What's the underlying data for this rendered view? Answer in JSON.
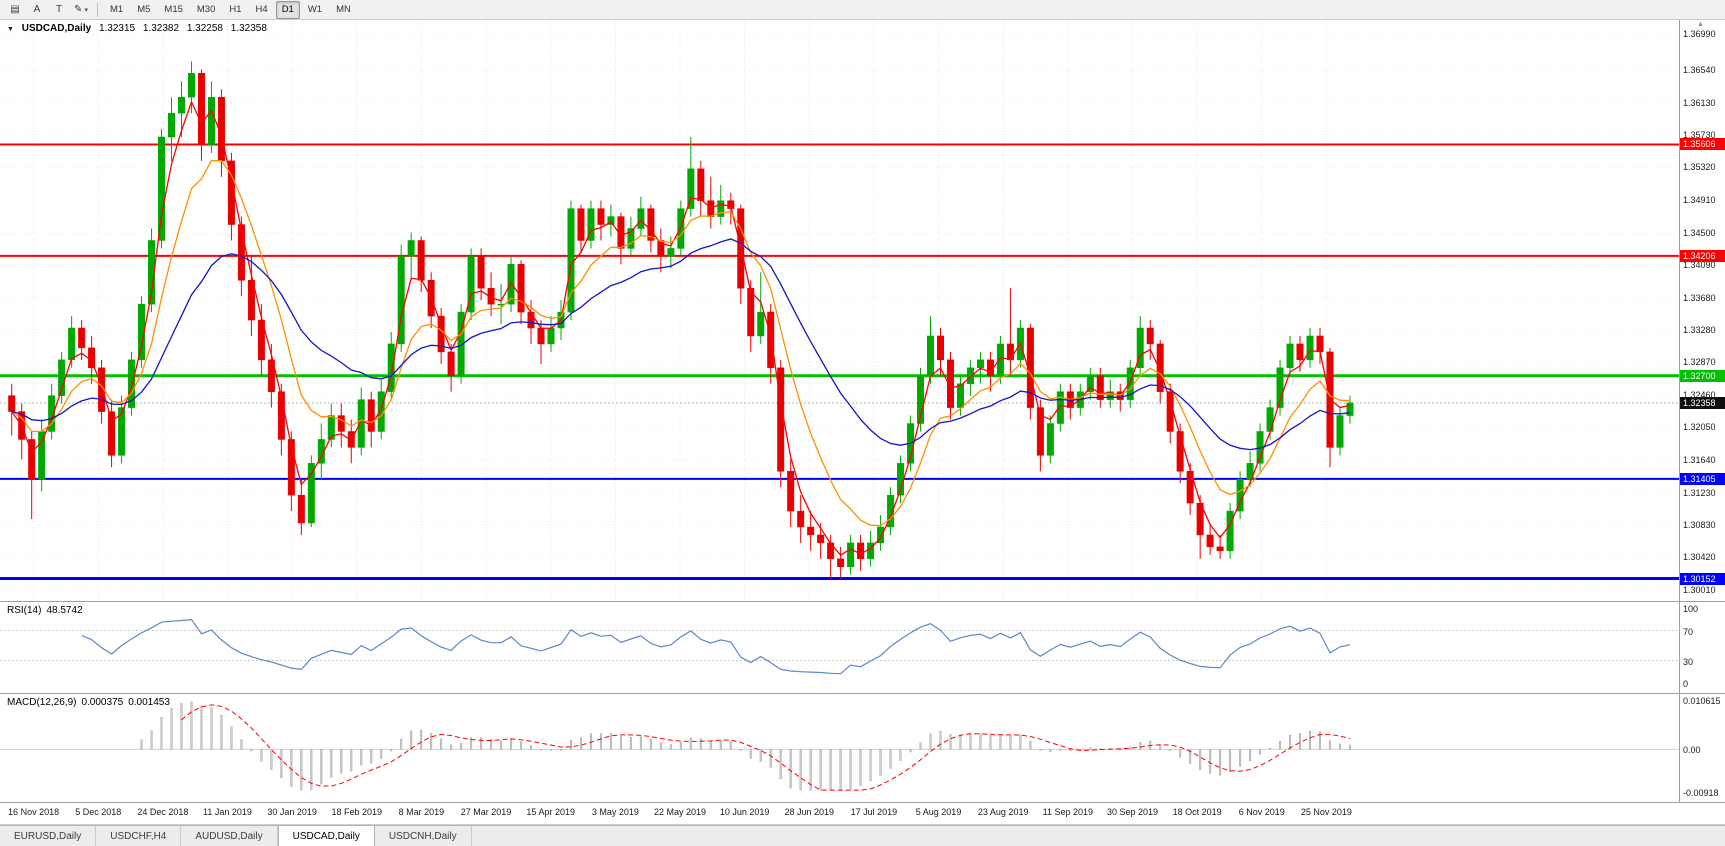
{
  "toolbar": {
    "tools": [
      {
        "name": "chart-symbol",
        "glyph": "▤"
      },
      {
        "name": "cursor-a",
        "glyph": "A"
      },
      {
        "name": "text-frame",
        "glyph": "T"
      },
      {
        "name": "draw-tools",
        "glyph": "✎",
        "caret": "▾"
      }
    ],
    "timeframes": [
      "M1",
      "M5",
      "M15",
      "M30",
      "H1",
      "H4",
      "D1",
      "W1",
      "MN"
    ],
    "active_timeframe": "D1"
  },
  "chart": {
    "title_icon": "▼",
    "symbol_label": "USDCAD,Daily",
    "ohlc": {
      "open": "1.32315",
      "high": "1.32382",
      "low": "1.32258",
      "close": "1.32358"
    },
    "scroll_up_icon": "▲"
  },
  "rsi": {
    "label": "RSI(14)",
    "value": "48.5742",
    "color": "#5a8ac6",
    "axis": [
      {
        "label": "100",
        "value": 100
      },
      {
        "label": "70",
        "value": 70
      },
      {
        "label": "30",
        "value": 30
      },
      {
        "label": "0",
        "value": 0
      }
    ],
    "dashed_levels": [
      70,
      30
    ]
  },
  "macd": {
    "label": "MACD(12,26,9)",
    "value_main": "0.000375",
    "value_signal": "0.001453",
    "histogram_color": "#cdcdcd",
    "histogram_stroke": "#9a9a9a",
    "signal_color": "#ff0000",
    "axis": [
      {
        "label": "0.010615",
        "value": 0.010615
      },
      {
        "label": "0.00",
        "value": 0
      },
      {
        "label": "-0.00918",
        "value": -0.00918
      }
    ]
  },
  "tabs": {
    "items": [
      "EURUSD,Daily",
      "USDCHF,H4",
      "AUDUSD,Daily",
      "USDCAD,Daily",
      "USDCNH,Daily"
    ],
    "active": "USDCAD,Daily"
  },
  "chart_data": {
    "type": "candlestick",
    "symbol": "USDCAD",
    "timeframe": "Daily",
    "y_range": [
      1.2987,
      1.3717
    ],
    "price_ticks": [
      "1.36990",
      "1.36540",
      "1.36130",
      "1.35730",
      "1.35320",
      "1.34910",
      "1.34500",
      "1.34090",
      "1.33680",
      "1.33280",
      "1.32870",
      "1.32460",
      "1.32050",
      "1.31640",
      "1.31230",
      "1.30830",
      "1.30420",
      "1.30010"
    ],
    "dates": [
      "16 Nov 2018",
      "5 Dec 2018",
      "24 Dec 2018",
      "11 Jan 2019",
      "30 Jan 2019",
      "18 Feb 2019",
      "8 Mar 2019",
      "27 Mar 2019",
      "15 Apr 2019",
      "3 May 2019",
      "22 May 2019",
      "10 Jun 2019",
      "28 Jun 2019",
      "17 Jul 2019",
      "5 Aug 2019",
      "23 Aug 2019",
      "11 Sep 2019",
      "30 Sep 2019",
      "18 Oct 2019",
      "6 Nov 2019",
      "25 Nov 2019"
    ],
    "bull_color": "#00a800",
    "bear_color": "#e80000",
    "levels": [
      {
        "label": "1.35606",
        "price": 1.35606,
        "color": "#ff0000",
        "width": 2
      },
      {
        "label": "1.34206",
        "price": 1.34206,
        "color": "#ff0000",
        "width": 2
      },
      {
        "label": "1.32700",
        "price": 1.327,
        "color": "#00c000",
        "width": 3
      },
      {
        "label": "1.31405",
        "price": 1.31405,
        "color": "#0000ff",
        "width": 2
      },
      {
        "label": "1.30152",
        "price": 1.30152,
        "color": "#0000ff",
        "width": 3
      }
    ],
    "current_price": {
      "label": "1.32358",
      "price": 1.32358,
      "line_color": "#b4b4b4",
      "tag_color": "#0d0d0d"
    },
    "moving_averages": [
      {
        "name": "ma-fast",
        "color": "#ff0000",
        "period": 3
      },
      {
        "name": "ma-mid",
        "color": "#ff9000",
        "period": 8
      },
      {
        "name": "ma-slow",
        "color": "#1414c8",
        "period": 22
      }
    ],
    "candles": [
      [
        1.3245,
        1.326,
        1.3195,
        1.3225
      ],
      [
        1.3225,
        1.3235,
        1.3165,
        1.319
      ],
      [
        1.319,
        1.32,
        1.309,
        1.314
      ],
      [
        1.314,
        1.3215,
        1.3125,
        1.32
      ],
      [
        1.32,
        1.326,
        1.319,
        1.3245
      ],
      [
        1.3245,
        1.33,
        1.3235,
        1.329
      ],
      [
        1.329,
        1.3345,
        1.328,
        1.333
      ],
      [
        1.333,
        1.334,
        1.329,
        1.3305
      ],
      [
        1.3305,
        1.332,
        1.326,
        1.328
      ],
      [
        1.328,
        1.329,
        1.321,
        1.3225
      ],
      [
        1.3225,
        1.324,
        1.3155,
        1.317
      ],
      [
        1.317,
        1.3245,
        1.316,
        1.323
      ],
      [
        1.323,
        1.33,
        1.322,
        1.329
      ],
      [
        1.329,
        1.337,
        1.328,
        1.336
      ],
      [
        1.336,
        1.3455,
        1.335,
        1.344
      ],
      [
        1.344,
        1.358,
        1.343,
        1.357
      ],
      [
        1.357,
        1.362,
        1.354,
        1.36
      ],
      [
        1.36,
        1.364,
        1.357,
        1.362
      ],
      [
        1.362,
        1.3665,
        1.36,
        1.365
      ],
      [
        1.365,
        1.3655,
        1.354,
        1.356
      ],
      [
        1.356,
        1.364,
        1.355,
        1.362
      ],
      [
        1.362,
        1.363,
        1.352,
        1.354
      ],
      [
        1.354,
        1.355,
        1.344,
        1.346
      ],
      [
        1.346,
        1.347,
        1.337,
        1.339
      ],
      [
        1.339,
        1.342,
        1.332,
        1.334
      ],
      [
        1.334,
        1.336,
        1.327,
        1.329
      ],
      [
        1.329,
        1.331,
        1.323,
        1.325
      ],
      [
        1.325,
        1.326,
        1.317,
        1.319
      ],
      [
        1.319,
        1.32,
        1.31,
        1.312
      ],
      [
        1.312,
        1.314,
        1.307,
        1.3085
      ],
      [
        1.3085,
        1.317,
        1.308,
        1.316
      ],
      [
        1.316,
        1.321,
        1.314,
        1.319
      ],
      [
        1.319,
        1.3235,
        1.318,
        1.322
      ],
      [
        1.322,
        1.3235,
        1.318,
        1.32
      ],
      [
        1.32,
        1.3215,
        1.316,
        1.318
      ],
      [
        1.318,
        1.3255,
        1.317,
        1.324
      ],
      [
        1.324,
        1.325,
        1.318,
        1.32
      ],
      [
        1.32,
        1.3265,
        1.319,
        1.325
      ],
      [
        1.325,
        1.3325,
        1.324,
        1.331
      ],
      [
        1.331,
        1.3435,
        1.33,
        1.342
      ],
      [
        1.342,
        1.345,
        1.339,
        1.344
      ],
      [
        1.344,
        1.3445,
        1.3375,
        1.339
      ],
      [
        1.339,
        1.34,
        1.333,
        1.3345
      ],
      [
        1.3345,
        1.3355,
        1.3285,
        1.33
      ],
      [
        1.33,
        1.331,
        1.325,
        1.327
      ],
      [
        1.327,
        1.336,
        1.326,
        1.335
      ],
      [
        1.335,
        1.343,
        1.334,
        1.342
      ],
      [
        1.342,
        1.343,
        1.3365,
        1.338
      ],
      [
        1.338,
        1.34,
        1.3345,
        1.336
      ],
      [
        1.336,
        1.3385,
        1.3335,
        1.336
      ],
      [
        1.336,
        1.342,
        1.335,
        1.341
      ],
      [
        1.341,
        1.3415,
        1.3335,
        1.335
      ],
      [
        1.335,
        1.3365,
        1.331,
        1.333
      ],
      [
        1.333,
        1.334,
        1.3285,
        1.331
      ],
      [
        1.331,
        1.3345,
        1.33,
        1.333
      ],
      [
        1.333,
        1.3365,
        1.3315,
        1.335
      ],
      [
        1.335,
        1.349,
        1.334,
        1.348
      ],
      [
        1.348,
        1.3485,
        1.3425,
        1.344
      ],
      [
        1.344,
        1.349,
        1.343,
        1.348
      ],
      [
        1.348,
        1.349,
        1.344,
        1.346
      ],
      [
        1.346,
        1.3485,
        1.3445,
        1.347
      ],
      [
        1.347,
        1.3475,
        1.341,
        1.343
      ],
      [
        1.343,
        1.347,
        1.342,
        1.3455
      ],
      [
        1.3455,
        1.3495,
        1.3445,
        1.348
      ],
      [
        1.348,
        1.3485,
        1.3425,
        1.344
      ],
      [
        1.344,
        1.3455,
        1.34,
        1.342
      ],
      [
        1.342,
        1.3445,
        1.3405,
        1.343
      ],
      [
        1.343,
        1.349,
        1.342,
        1.348
      ],
      [
        1.348,
        1.357,
        1.347,
        1.353
      ],
      [
        1.353,
        1.354,
        1.347,
        1.349
      ],
      [
        1.349,
        1.352,
        1.3455,
        1.347
      ],
      [
        1.347,
        1.351,
        1.346,
        1.349
      ],
      [
        1.349,
        1.35,
        1.346,
        1.348
      ],
      [
        1.348,
        1.3485,
        1.336,
        1.338
      ],
      [
        1.338,
        1.339,
        1.33,
        1.332
      ],
      [
        1.332,
        1.34,
        1.331,
        1.335
      ],
      [
        1.335,
        1.336,
        1.326,
        1.328
      ],
      [
        1.328,
        1.329,
        1.313,
        1.315
      ],
      [
        1.315,
        1.3165,
        1.308,
        1.31
      ],
      [
        1.31,
        1.312,
        1.306,
        1.308
      ],
      [
        1.308,
        1.31,
        1.305,
        1.307
      ],
      [
        1.307,
        1.3085,
        1.304,
        1.306
      ],
      [
        1.306,
        1.307,
        1.3015,
        1.304
      ],
      [
        1.304,
        1.3055,
        1.3015,
        1.303
      ],
      [
        1.303,
        1.307,
        1.302,
        1.306
      ],
      [
        1.306,
        1.307,
        1.3025,
        1.304
      ],
      [
        1.304,
        1.3075,
        1.303,
        1.306
      ],
      [
        1.306,
        1.3095,
        1.305,
        1.308
      ],
      [
        1.308,
        1.313,
        1.307,
        1.312
      ],
      [
        1.312,
        1.317,
        1.311,
        1.316
      ],
      [
        1.316,
        1.322,
        1.315,
        1.321
      ],
      [
        1.321,
        1.328,
        1.32,
        1.327
      ],
      [
        1.327,
        1.3345,
        1.326,
        1.332
      ],
      [
        1.332,
        1.333,
        1.327,
        1.329
      ],
      [
        1.329,
        1.33,
        1.3215,
        1.323
      ],
      [
        1.323,
        1.327,
        1.322,
        1.326
      ],
      [
        1.326,
        1.329,
        1.3245,
        1.328
      ],
      [
        1.328,
        1.33,
        1.326,
        1.329
      ],
      [
        1.329,
        1.33,
        1.325,
        1.327
      ],
      [
        1.327,
        1.332,
        1.326,
        1.331
      ],
      [
        1.331,
        1.338,
        1.327,
        1.329
      ],
      [
        1.329,
        1.334,
        1.328,
        1.333
      ],
      [
        1.333,
        1.3335,
        1.3215,
        1.323
      ],
      [
        1.323,
        1.324,
        1.315,
        1.317
      ],
      [
        1.317,
        1.322,
        1.316,
        1.321
      ],
      [
        1.321,
        1.326,
        1.32,
        1.325
      ],
      [
        1.325,
        1.326,
        1.3215,
        1.323
      ],
      [
        1.323,
        1.326,
        1.322,
        1.325
      ],
      [
        1.325,
        1.328,
        1.324,
        1.327
      ],
      [
        1.327,
        1.328,
        1.323,
        1.324
      ],
      [
        1.324,
        1.3265,
        1.323,
        1.325
      ],
      [
        1.325,
        1.326,
        1.3225,
        1.324
      ],
      [
        1.324,
        1.329,
        1.323,
        1.328
      ],
      [
        1.328,
        1.3345,
        1.327,
        1.333
      ],
      [
        1.333,
        1.334,
        1.329,
        1.331
      ],
      [
        1.331,
        1.3315,
        1.3235,
        1.325
      ],
      [
        1.325,
        1.326,
        1.3185,
        1.32
      ],
      [
        1.32,
        1.321,
        1.3135,
        1.315
      ],
      [
        1.315,
        1.316,
        1.3095,
        1.311
      ],
      [
        1.311,
        1.312,
        1.304,
        1.307
      ],
      [
        1.307,
        1.3085,
        1.3045,
        1.3055
      ],
      [
        1.3055,
        1.307,
        1.304,
        1.305
      ],
      [
        1.305,
        1.311,
        1.304,
        1.31
      ],
      [
        1.31,
        1.315,
        1.309,
        1.314
      ],
      [
        1.314,
        1.3175,
        1.313,
        1.316
      ],
      [
        1.316,
        1.321,
        1.315,
        1.32
      ],
      [
        1.32,
        1.324,
        1.319,
        1.323
      ],
      [
        1.323,
        1.329,
        1.322,
        1.328
      ],
      [
        1.328,
        1.332,
        1.327,
        1.331
      ],
      [
        1.331,
        1.332,
        1.3275,
        1.329
      ],
      [
        1.329,
        1.333,
        1.328,
        1.332
      ],
      [
        1.332,
        1.333,
        1.3285,
        1.33
      ],
      [
        1.33,
        1.3305,
        1.3155,
        1.318
      ],
      [
        1.318,
        1.323,
        1.317,
        1.322
      ],
      [
        1.322,
        1.3245,
        1.321,
        1.3236
      ]
    ]
  }
}
